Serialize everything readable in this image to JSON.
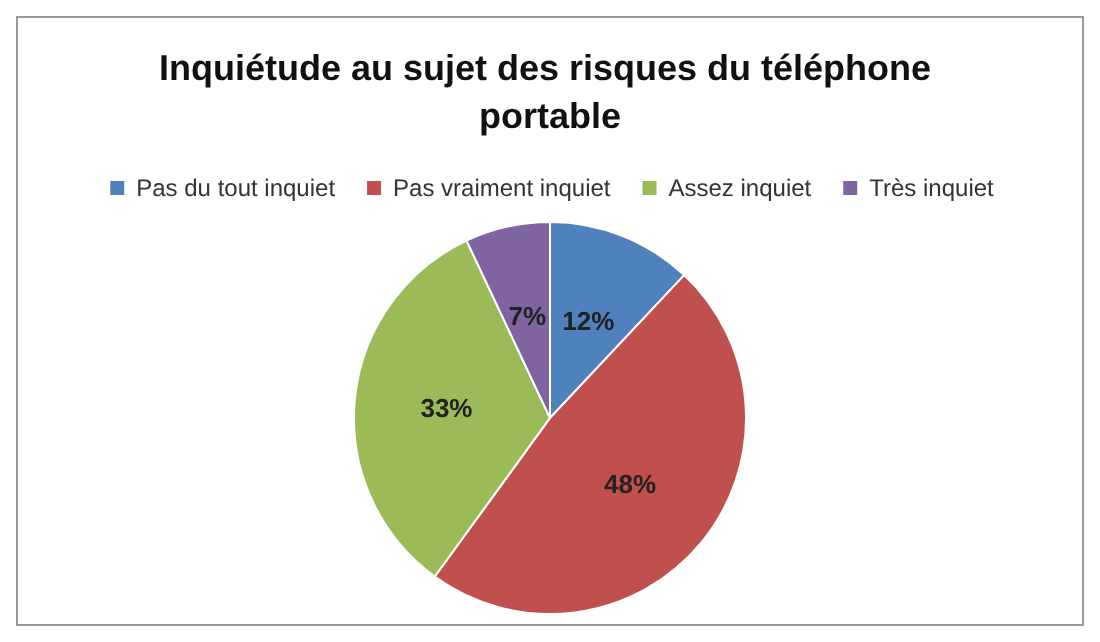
{
  "chart_data": {
    "type": "pie",
    "title": "Inquiétude au sujet des risques du téléphone portable",
    "categories": [
      "Pas du tout inquiet",
      "Pas vraiment inquiet",
      "Assez inquiet",
      "Très inquiet"
    ],
    "values": [
      12,
      48,
      33,
      7
    ],
    "colors": [
      "#4f81bd",
      "#c0504d",
      "#9bbb59",
      "#8064a2"
    ],
    "value_labels": [
      "12%",
      "48%",
      "33%",
      "7%"
    ],
    "legend": "top"
  }
}
